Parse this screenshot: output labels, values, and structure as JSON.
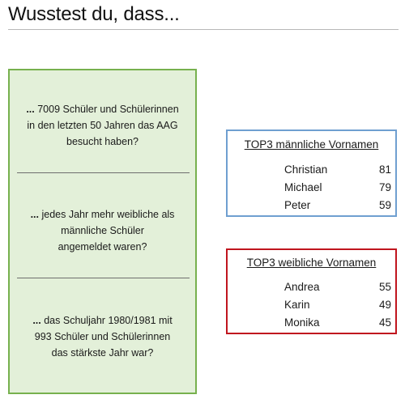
{
  "page": {
    "title": "Wusstest du, dass..."
  },
  "facts": [
    {
      "dots": "...",
      "lines": [
        "7009 Schüler und Schülerinnen",
        "in den letzten 50 Jahren das AAG",
        "besucht haben?"
      ]
    },
    {
      "dots": "...",
      "lines": [
        "jedes Jahr mehr weibliche als",
        "männliche Schüler",
        "angemeldet waren?"
      ]
    },
    {
      "dots": "...",
      "lines": [
        "das Schuljahr 1980/1981 mit",
        "993 Schüler und Schülerinnen",
        "das stärkste Jahr war?"
      ]
    }
  ],
  "top_male": {
    "title": "TOP3 männliche Vornamen",
    "border_color": "#6f9fd0",
    "names": [
      {
        "name": "Christian",
        "count": "81"
      },
      {
        "name": "Michael",
        "count": "79"
      },
      {
        "name": "Peter",
        "count": "59"
      }
    ]
  },
  "top_female": {
    "title": "TOP3 weibliche Vornamen",
    "border_color": "#c0151e",
    "names": [
      {
        "name": "Andrea",
        "count": "55"
      },
      {
        "name": "Karin",
        "count": "49"
      },
      {
        "name": "Monika",
        "count": "45"
      }
    ]
  },
  "colors": {
    "facts_background": "#e3f0d9",
    "facts_border": "#77b14e"
  }
}
